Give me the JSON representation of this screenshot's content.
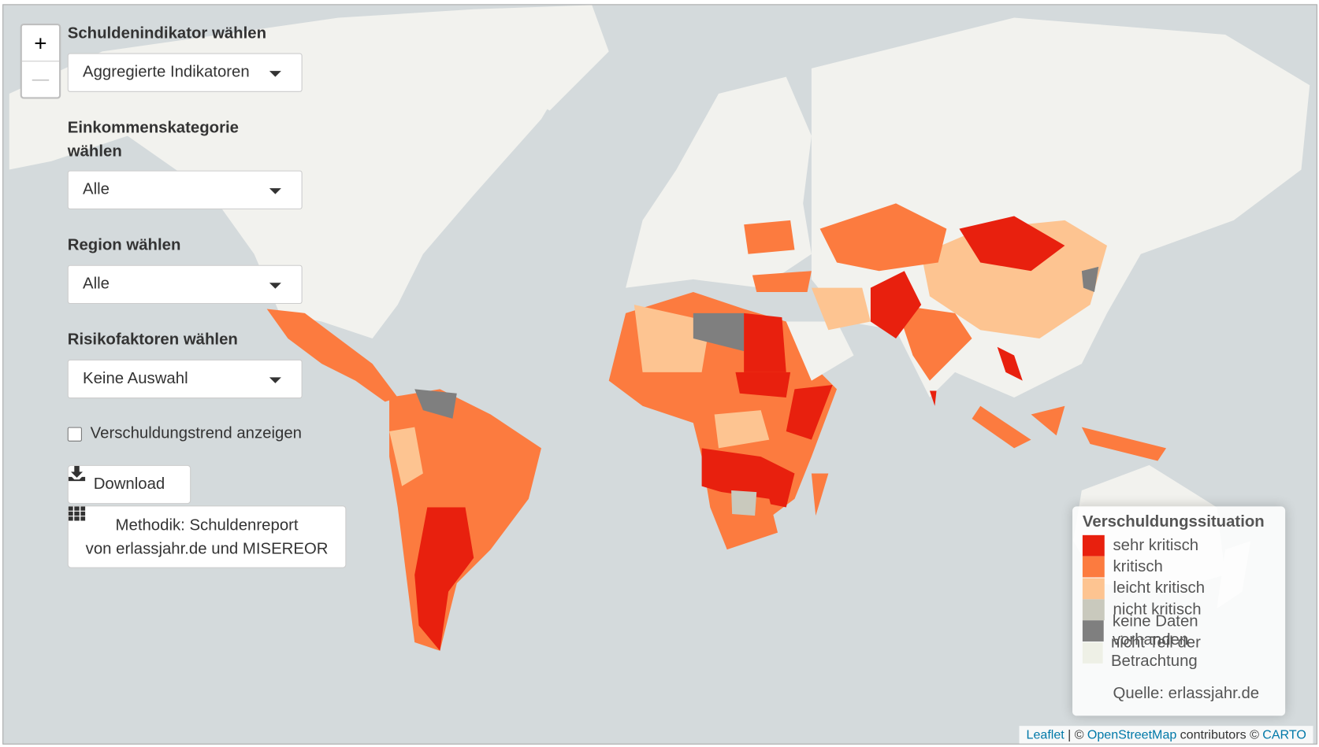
{
  "zoom": {
    "in": "+",
    "out": "—"
  },
  "controls": {
    "indicator": {
      "label": "Schuldenindikator wählen",
      "value": "Aggregierte Indikatoren"
    },
    "income": {
      "label": "Einkommenskategorie wählen",
      "value": "Alle"
    },
    "region": {
      "label": "Region wählen",
      "value": "Alle"
    },
    "risk": {
      "label": "Risikofaktoren wählen",
      "value": "Keine Auswahl"
    },
    "trend": "Verschuldungstrend anzeigen",
    "download": "Download",
    "method": [
      "Methodik: Schuldenreport",
      "von erlassjahr.de und MISEREOR"
    ]
  },
  "legend": {
    "title": "Verschuldungssituation",
    "items": [
      {
        "label": "sehr kritisch",
        "color": "#e8200e"
      },
      {
        "label": "kritisch",
        "color": "#fc7b3f"
      },
      {
        "label": "leicht kritisch",
        "color": "#fdc491"
      },
      {
        "label": "nicht kritisch",
        "color": "#c9c9bd"
      },
      {
        "label": "keine Daten vorhanden",
        "color": "#7f7f7f"
      },
      {
        "label": "nicht Teil der Betrachtung",
        "color": "#eef0e6"
      }
    ],
    "source": "Quelle: erlassjahr.de"
  },
  "attribution": [
    "Leaflet",
    "| ©",
    "OpenStreetMap",
    "contributors ©",
    "CARTO"
  ]
}
